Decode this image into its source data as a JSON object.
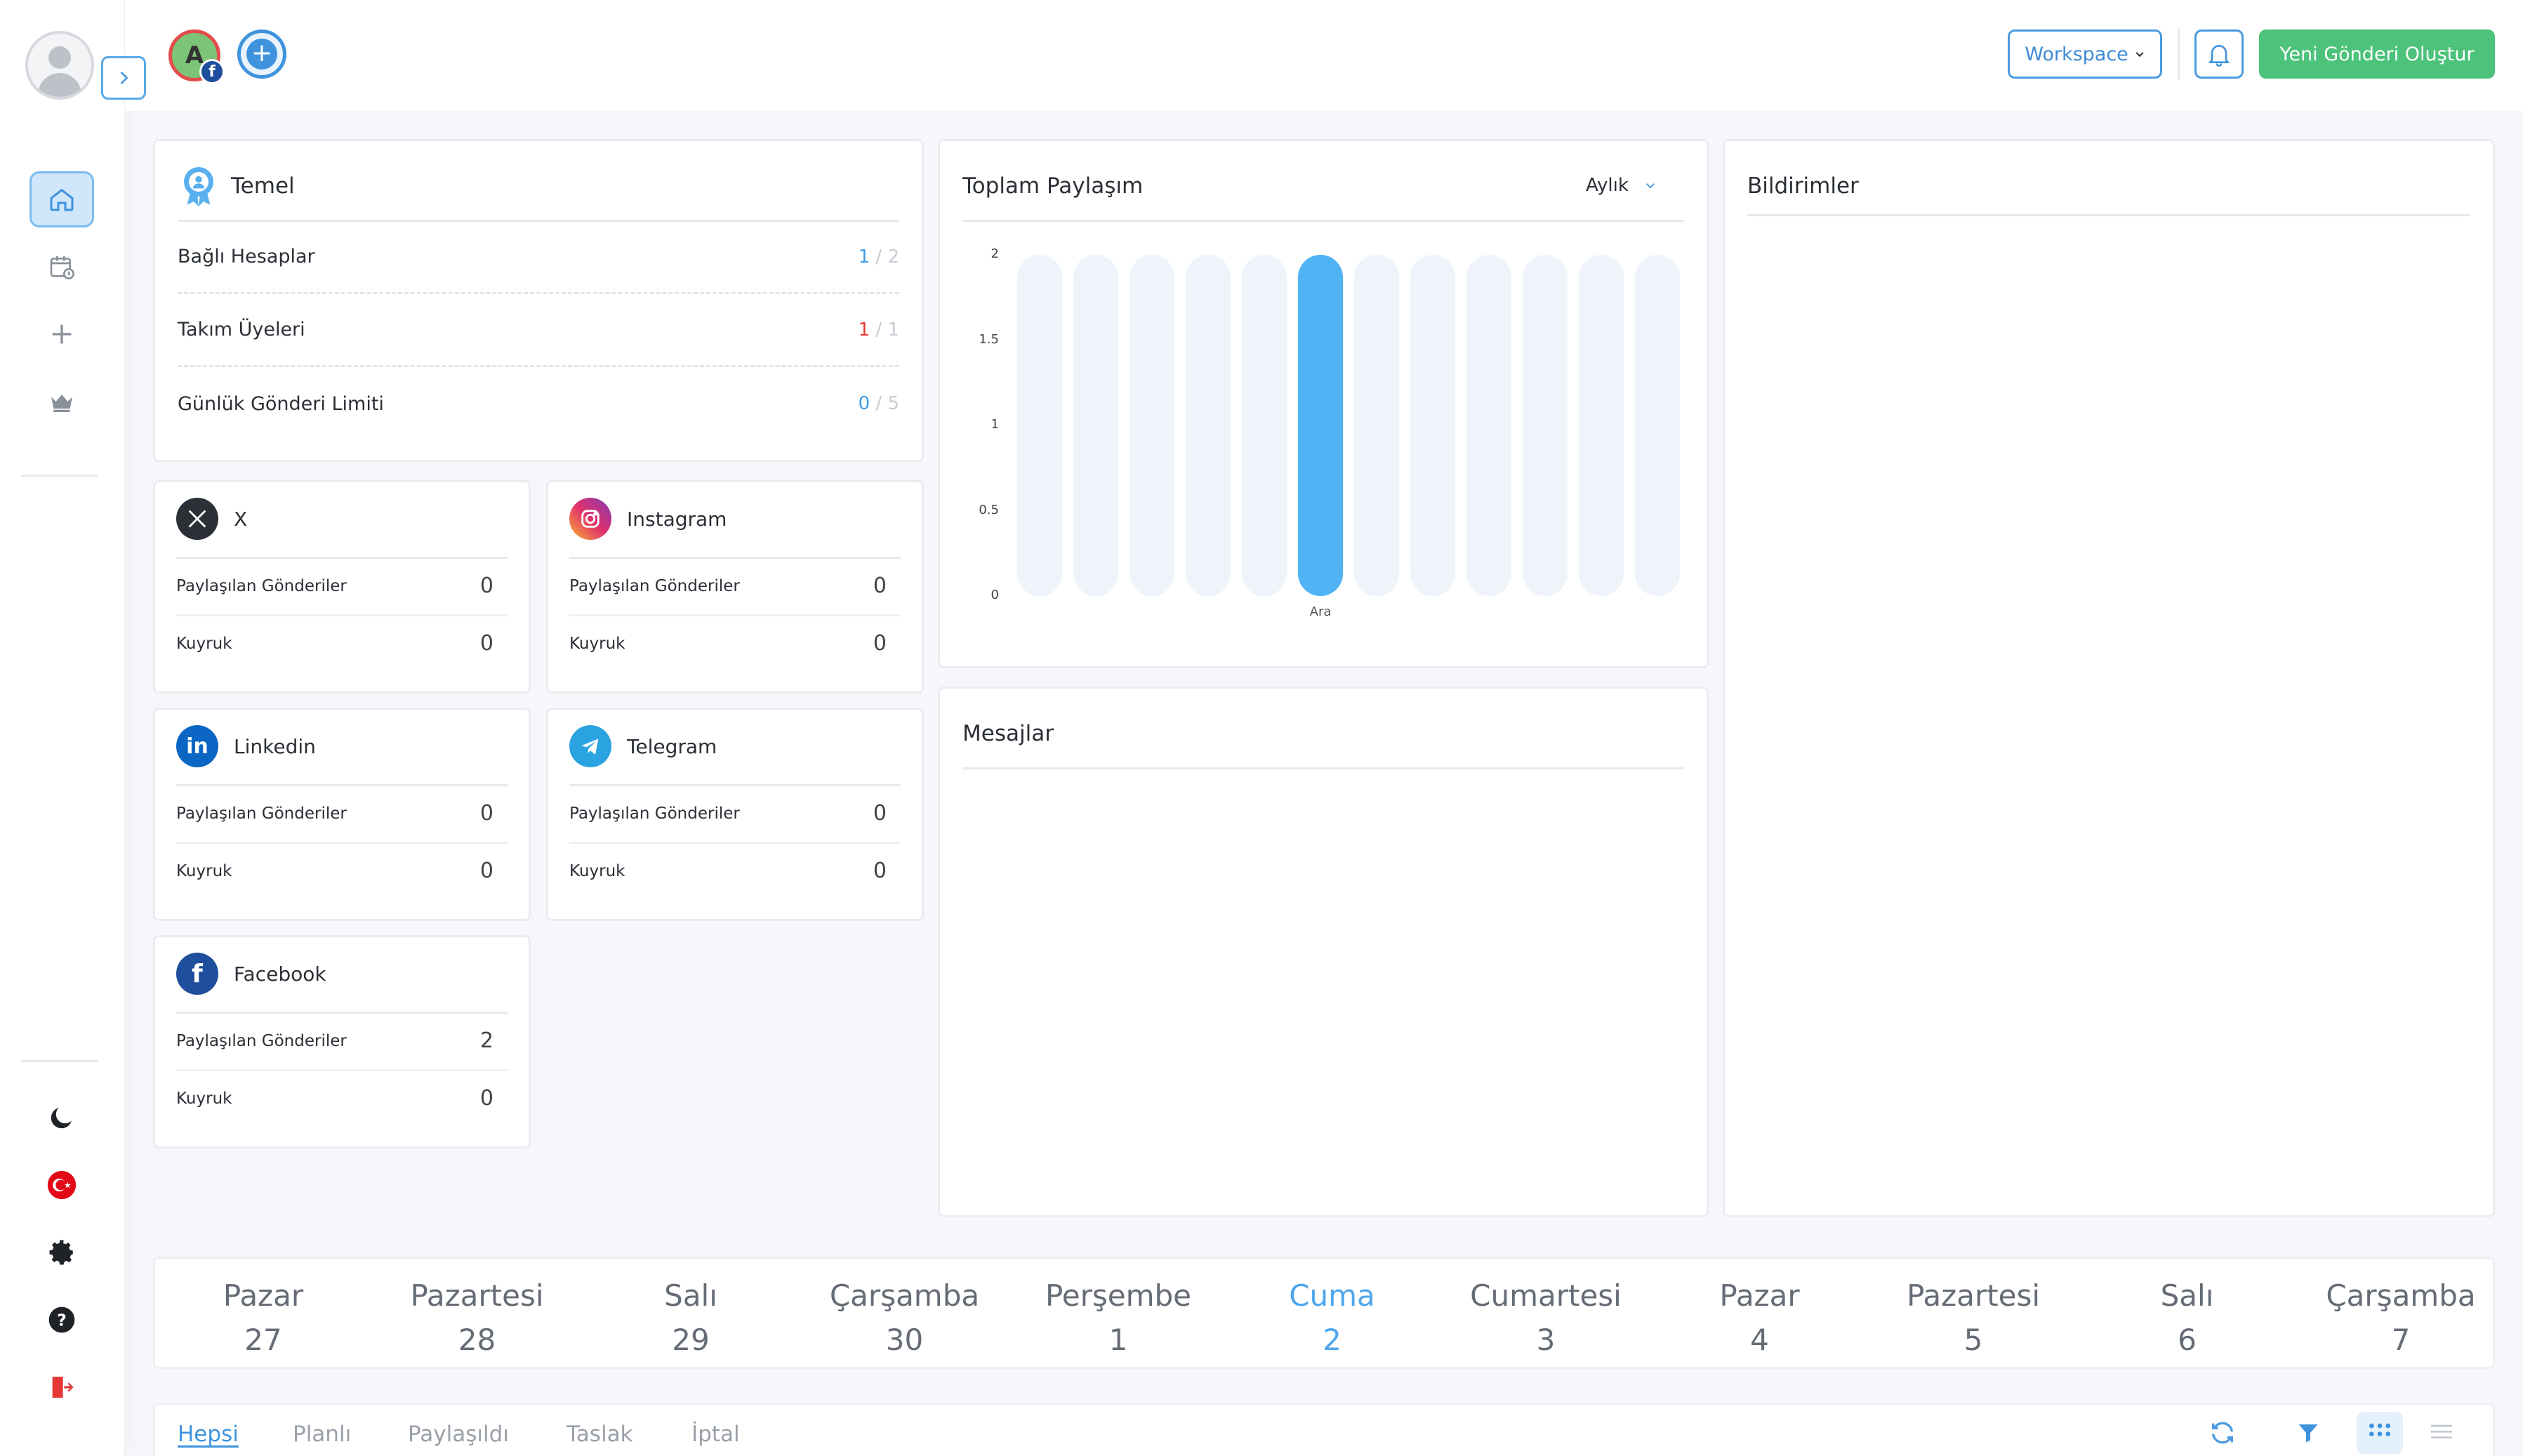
{
  "header": {
    "account_initial": "A",
    "account_network_badge": "f",
    "workspace_label": "Workspace",
    "new_post_label": "Yeni Gönderi Oluştur"
  },
  "sidebar": {
    "items": [
      {
        "name": "home-icon"
      },
      {
        "name": "calendar-icon"
      },
      {
        "name": "plus-icon"
      },
      {
        "name": "crown-icon"
      }
    ],
    "bottom": [
      {
        "name": "moon-icon"
      },
      {
        "name": "turkey-flag-icon"
      },
      {
        "name": "gear-icon"
      },
      {
        "name": "help-icon"
      },
      {
        "name": "logout-icon"
      }
    ]
  },
  "temel": {
    "title": "Temel",
    "rows": [
      {
        "label": "Bağlı Hesaplar",
        "current": "1",
        "total": "2",
        "color": "#3f9de8"
      },
      {
        "label": "Takım Üyeleri",
        "current": "1",
        "total": "1",
        "color": "#e53935"
      },
      {
        "label": "Günlük Gönderi Limiti",
        "current": "0",
        "total": "5",
        "color": "#3f9de8"
      }
    ]
  },
  "socials": [
    {
      "name": "X",
      "icon": "x-logo-icon",
      "row1_label": "Paylaşılan Gönderiler",
      "row1_value": "0",
      "row2_label": "Kuyruk",
      "row2_value": "0"
    },
    {
      "name": "Instagram",
      "icon": "instagram-logo-icon",
      "row1_label": "Paylaşılan Gönderiler",
      "row1_value": "0",
      "row2_label": "Kuyruk",
      "row2_value": "0"
    },
    {
      "name": "Linkedin",
      "icon": "linkedin-logo-icon",
      "row1_label": "Paylaşılan Gönderiler",
      "row1_value": "0",
      "row2_label": "Kuyruk",
      "row2_value": "0"
    },
    {
      "name": "Telegram",
      "icon": "telegram-logo-icon",
      "row1_label": "Paylaşılan Gönderiler",
      "row1_value": "0",
      "row2_label": "Kuyruk",
      "row2_value": "0"
    },
    {
      "name": "Facebook",
      "icon": "facebook-logo-icon",
      "row1_label": "Paylaşılan Gönderiler",
      "row1_value": "2",
      "row2_label": "Kuyruk",
      "row2_value": "0"
    }
  ],
  "chart_card": {
    "title": "Toplam Paylaşım",
    "period": "Aylık"
  },
  "chart_data": {
    "type": "bar",
    "title": "Toplam Paylaşım",
    "categories": [
      "",
      "",
      "",
      "",
      "",
      "Ara",
      "",
      "",
      "",
      "",
      "",
      ""
    ],
    "values": [
      0,
      0,
      0,
      0,
      0,
      2,
      0,
      0,
      0,
      0,
      0,
      0
    ],
    "yticks": [
      "0",
      "0.5",
      "1",
      "1.5",
      "2"
    ],
    "ylim": [
      0,
      2
    ],
    "xlabel": "",
    "ylabel": "",
    "grid": false,
    "colors": {
      "bar": "#4fb3f4",
      "track": "#eff4fb"
    }
  },
  "messages": {
    "title": "Mesajlar"
  },
  "notifications": {
    "title": "Bildirimler"
  },
  "week": [
    {
      "name": "Pazar",
      "num": "27"
    },
    {
      "name": "Pazartesi",
      "num": "28"
    },
    {
      "name": "Salı",
      "num": "29"
    },
    {
      "name": "Çarşamba",
      "num": "30"
    },
    {
      "name": "Perşembe",
      "num": "1"
    },
    {
      "name": "Cuma",
      "num": "2",
      "today": true
    },
    {
      "name": "Cumartesi",
      "num": "3"
    },
    {
      "name": "Pazar",
      "num": "4"
    },
    {
      "name": "Pazartesi",
      "num": "5"
    },
    {
      "name": "Salı",
      "num": "6"
    },
    {
      "name": "Çarşamba",
      "num": "7"
    }
  ],
  "filters": {
    "tabs": [
      "Hepsi",
      "Planlı",
      "Paylaşıldı",
      "Taslak",
      "İptal"
    ],
    "active": "Hepsi"
  },
  "colors": {
    "accent": "#3f93dd",
    "success": "#4cc27a",
    "danger": "#e53935"
  }
}
